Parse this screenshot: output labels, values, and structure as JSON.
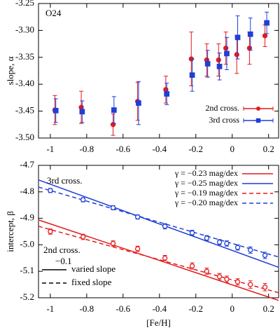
{
  "chart_data": [
    {
      "type": "scatter",
      "label": "O24",
      "y_label": "slope, α",
      "xlim": [
        -1.065,
        0.255
      ],
      "ylim": [
        -3.5,
        -3.25
      ],
      "xticks": [
        -1,
        -0.8,
        -0.6,
        -0.4,
        -0.2,
        0,
        0.2
      ],
      "yticks": [
        {
          "value": -3.5,
          "label": "-3.50"
        },
        -3.45,
        {
          "value": -3.4,
          "label": "-3.40"
        },
        -3.35,
        {
          "value": -3.3,
          "label": "-3.30"
        },
        -3.25
      ],
      "legend": "lower right",
      "series": [
        {
          "name": "2nd cross.",
          "color": "#e41a1c",
          "marker": "circle",
          "filled": true,
          "x": [
            -0.975,
            -0.83,
            -0.655,
            -0.52,
            -0.365,
            -0.225,
            -0.14,
            -0.075,
            -0.035,
            0.025,
            0.095,
            0.18
          ],
          "values": [
            -3.448,
            -3.443,
            -3.475,
            -3.432,
            -3.41,
            -3.353,
            -3.355,
            -3.355,
            -3.333,
            -3.345,
            -3.333,
            -3.31
          ],
          "errors": [
            0.027,
            0.03,
            0.02,
            0.035,
            0.025,
            0.05,
            0.03,
            0.03,
            0.03,
            0.035,
            0.03,
            0.02
          ]
        },
        {
          "name": "3rd cross",
          "color": "#1f3fd6",
          "marker": "square",
          "filled": true,
          "x": [
            -0.97,
            -0.825,
            -0.65,
            -0.515,
            -0.36,
            -0.22,
            -0.135,
            -0.07,
            -0.03,
            0.03,
            0.1,
            0.19
          ],
          "values": [
            -3.449,
            -3.451,
            -3.448,
            -3.435,
            -3.418,
            -3.383,
            -3.362,
            -3.367,
            -3.343,
            -3.313,
            -3.307,
            -3.286
          ],
          "errors": [
            0.022,
            0.02,
            0.025,
            0.04,
            0.02,
            0.03,
            0.025,
            0.025,
            0.03,
            0.04,
            0.03,
            0.02
          ]
        }
      ]
    },
    {
      "type": "line",
      "x_label": "[Fe/H]",
      "y_label": "intercept, β",
      "xlim": [
        -1.065,
        0.255
      ],
      "ylim": [
        -5.2,
        -4.7
      ],
      "xticks": [
        -1,
        -0.8,
        -0.6,
        -0.4,
        -0.2,
        0,
        0.2
      ],
      "yticks": [
        -4.7,
        -4.8,
        -4.9,
        {
          "value": -5.0,
          "label": "-5.0"
        },
        -5.1,
        -5.2
      ],
      "legend": "upper right",
      "annotations": [
        {
          "text": "3rd cross.",
          "color": "#1f3fd6"
        },
        {
          "text": "2nd cross.",
          "color": "#e41a1c"
        },
        {
          "text": "−0.1",
          "color": "#e41a1c"
        }
      ],
      "style_legend": [
        {
          "label": "varied slope",
          "dashed": false
        },
        {
          "label": "fixed slope",
          "dashed": true
        }
      ],
      "series": [
        {
          "name": "γ = −0.23 mag/dex",
          "color": "#e41a1c",
          "dashed": false,
          "x": [
            -1.065,
            0.255
          ],
          "values": [
            -4.906,
            -5.21
          ]
        },
        {
          "name": "γ = −0.25 mag/dex",
          "color": "#1f3fd6",
          "dashed": false,
          "x": [
            -1.065,
            0.255
          ],
          "values": [
            -4.755,
            -5.085
          ]
        },
        {
          "name": "γ = −0.19 mag/dex",
          "color": "#e41a1c",
          "dashed": true,
          "x": [
            -1.065,
            0.255
          ],
          "values": [
            -4.93,
            -5.181
          ]
        },
        {
          "name": "γ = −0.20 mag/dex",
          "color": "#1f3fd6",
          "dashed": true,
          "x": [
            -1.065,
            0.255
          ],
          "values": [
            -4.782,
            -5.046
          ]
        },
        {
          "color": "#1f3fd6",
          "marker": "circle",
          "filled": false,
          "x": [
            -1,
            -0.82,
            -0.655,
            -0.52,
            -0.37,
            -0.22,
            -0.14,
            -0.07,
            -0.03,
            0.03,
            0.1,
            0.18
          ],
          "values": [
            -4.795,
            -4.83,
            -4.86,
            -4.895,
            -4.93,
            -4.955,
            -4.975,
            -4.99,
            -4.995,
            -5.01,
            -5.02,
            -5.04
          ],
          "errors": [
            0.008,
            0.008,
            0.008,
            0.008,
            0.01,
            0.01,
            0.01,
            0.01,
            0.01,
            0.01,
            0.012,
            0.012
          ]
        },
        {
          "color": "#e41a1c",
          "marker": "circle",
          "filled": false,
          "x": [
            -1,
            -0.82,
            -0.655,
            -0.52,
            -0.37,
            -0.22,
            -0.14,
            -0.07,
            -0.03,
            0.03,
            0.1,
            0.18
          ],
          "values": [
            -4.95,
            -4.97,
            -4.995,
            -5.015,
            -5.05,
            -5.08,
            -5.1,
            -5.12,
            -5.13,
            -5.14,
            -5.15,
            -5.16
          ],
          "errors": [
            0.01,
            0.01,
            0.01,
            0.01,
            0.01,
            0.012,
            0.012,
            0.012,
            0.012,
            0.012,
            0.014,
            0.014
          ]
        }
      ]
    }
  ]
}
